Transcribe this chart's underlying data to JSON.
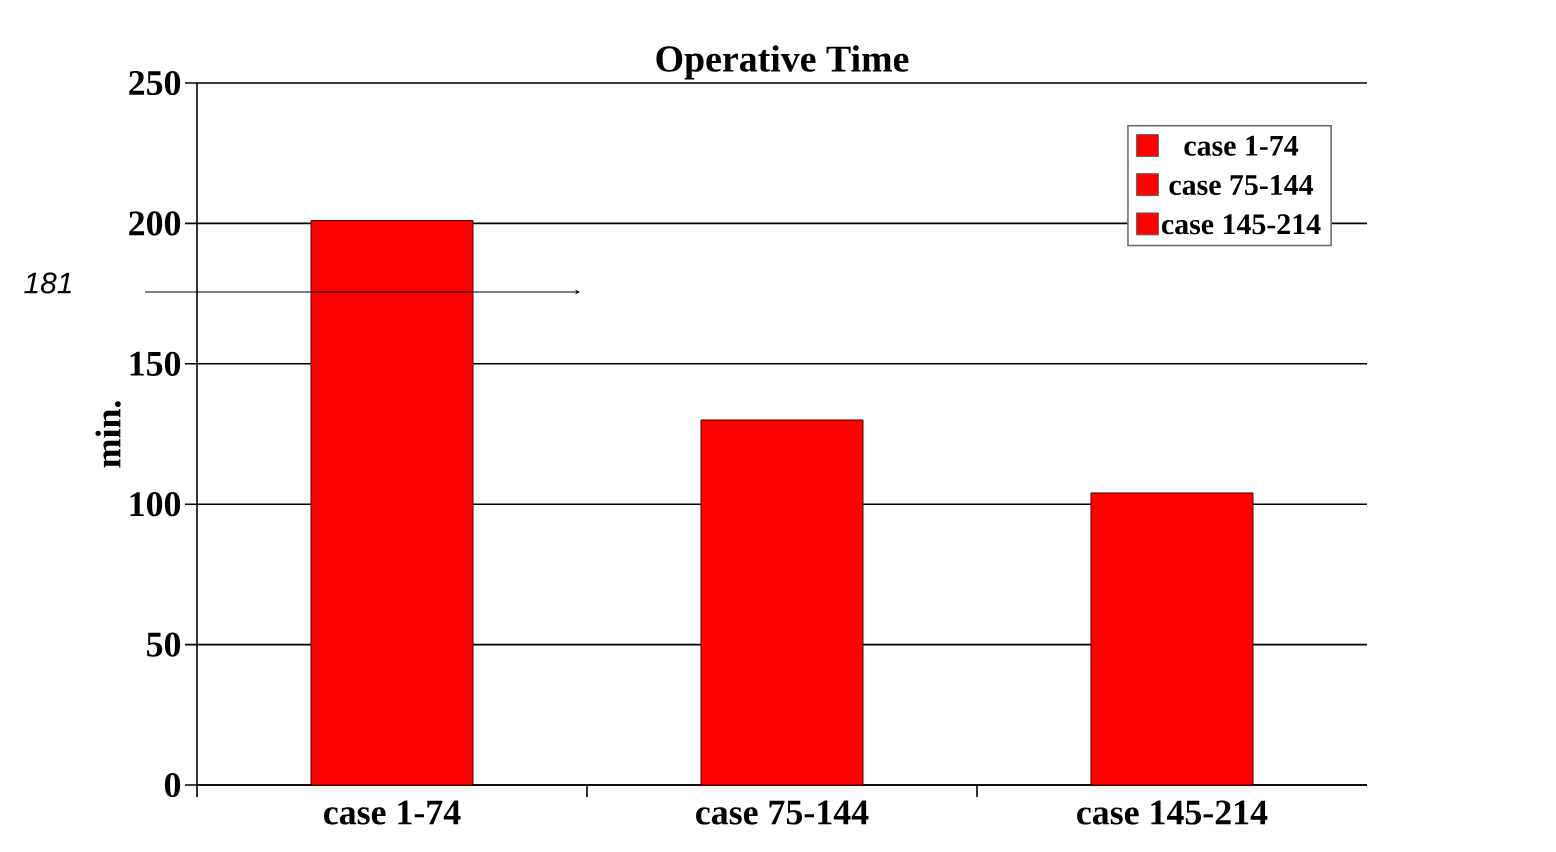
{
  "chart_data": {
    "type": "bar",
    "title": "Operative Time",
    "ylabel": "min.",
    "categories": [
      "case 1-74",
      "case 75-144",
      "case 145-214"
    ],
    "series": [
      {
        "name": "case 1-74",
        "color": "#ff0000",
        "values": [
          201,
          null,
          null
        ]
      },
      {
        "name": "case 75-144",
        "color": "#ff0000",
        "values": [
          null,
          130,
          null
        ]
      },
      {
        "name": "case 145-214",
        "color": "#ff0000",
        "values": [
          null,
          null,
          104
        ]
      }
    ],
    "ylim": [
      0,
      250
    ],
    "yticks": [
      0,
      50,
      100,
      150,
      200,
      250
    ],
    "grid": "y",
    "legend": "top right",
    "annotations": [
      "181"
    ]
  }
}
